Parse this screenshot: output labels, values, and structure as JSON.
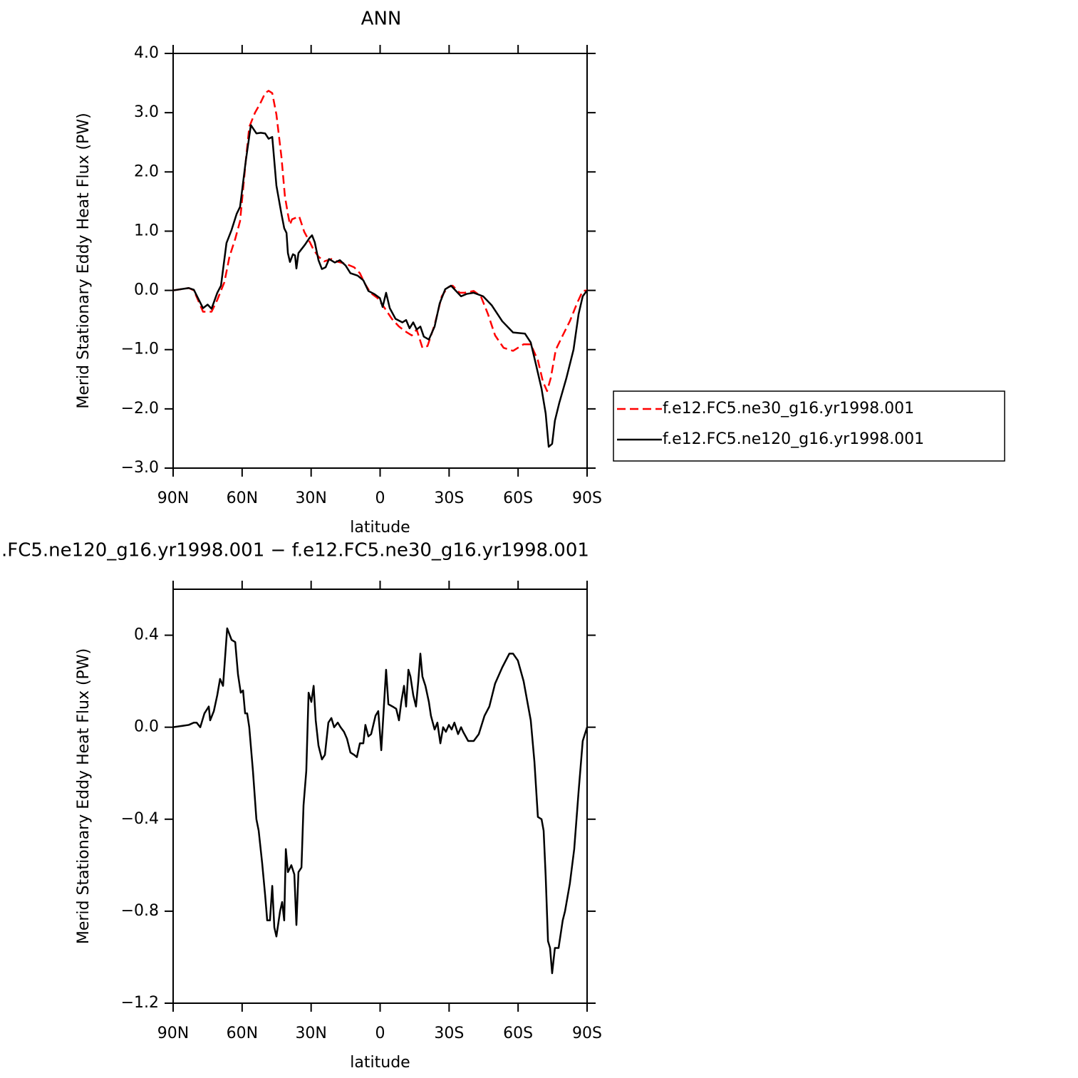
{
  "chart_data": [
    {
      "type": "line",
      "title": "ANN",
      "xlabel": "latitude",
      "ylabel": "Merid Stationary Eddy Heat Flux (PW)",
      "xlim": [
        90,
        -90
      ],
      "xticks": [
        {
          "value": 90,
          "label": "90N"
        },
        {
          "value": 60,
          "label": "60N"
        },
        {
          "value": 30,
          "label": "30N"
        },
        0,
        {
          "value": -30,
          "label": "30S"
        },
        {
          "value": -60,
          "label": "60S"
        },
        {
          "value": -90,
          "label": "90S"
        }
      ],
      "ylim": [
        -3,
        4
      ],
      "yticks": [
        {
          "value": 4,
          "label": "4.0"
        },
        {
          "value": 3,
          "label": "3.0"
        },
        {
          "value": 2,
          "label": "2.0"
        },
        {
          "value": 1,
          "label": "1.0"
        },
        {
          "value": 0,
          "label": "0.0"
        },
        {
          "value": -1,
          "label": "−1.0"
        },
        {
          "value": -2,
          "label": "−2.0"
        },
        {
          "value": -3,
          "label": "−3.0"
        }
      ],
      "legend": "right",
      "series": [
        {
          "name": "f.e12.FC5.ne30_g16.yr1998.001",
          "color": "#ff0000",
          "linestyle": "dashed",
          "x": [
            90,
            83.2,
            81,
            77,
            73.3,
            70.8,
            67.7,
            65.5,
            63,
            60.9,
            58.4,
            56.9,
            54.4,
            52.2,
            50,
            48.5,
            46.9,
            45.1,
            42.9,
            41.4,
            40.1,
            39.2,
            38.3,
            35.2,
            33,
            30.5,
            29,
            26.8,
            24.3,
            21.2,
            18.1,
            15,
            11.3,
            8.8,
            6.7,
            4.2,
            1.1,
            -2,
            -5.1,
            -8.2,
            -11.3,
            -13.8,
            -15.9,
            -18.4,
            -20.6,
            -23.7,
            -26.8,
            -29.3,
            -31.5,
            -34.6,
            -36.7,
            -40.7,
            -43.8,
            -46.9,
            -50,
            -53.7,
            -57.8,
            -62.4,
            -65.5,
            -68.6,
            -70.8,
            -72.6,
            -74.2,
            -76.4,
            -79.4,
            -82.5,
            -85.6,
            -88.1,
            -90
          ],
          "values": [
            0,
            0.04,
            0,
            -0.36,
            -0.36,
            -0.16,
            0.14,
            0.57,
            0.87,
            1.17,
            2.19,
            2.76,
            3.0,
            3.15,
            3.33,
            3.37,
            3.33,
            2.97,
            2.25,
            1.59,
            1.29,
            1.11,
            1.2,
            1.25,
            0.99,
            0.81,
            0.69,
            0.57,
            0.49,
            0.53,
            0.48,
            0.45,
            0.39,
            0.29,
            0.12,
            -0.04,
            -0.13,
            -0.3,
            -0.48,
            -0.61,
            -0.7,
            -0.76,
            -0.66,
            -0.97,
            -0.94,
            -0.58,
            -0.1,
            0.05,
            0.08,
            -0.04,
            -0.04,
            -0.01,
            -0.1,
            -0.4,
            -0.76,
            -0.97,
            -1.02,
            -0.91,
            -0.91,
            -1.18,
            -1.54,
            -1.7,
            -1.48,
            -1.0,
            -0.76,
            -0.52,
            -0.22,
            -0.01,
            0
          ]
        },
        {
          "name": "f.e12.FC5.ne120_g16.yr1998.001",
          "color": "#000000",
          "linestyle": "solid",
          "x": [
            90,
            83.2,
            81,
            77,
            75,
            73.3,
            70.8,
            69.2,
            66.8,
            64.6,
            62.4,
            60.9,
            58.4,
            56.2,
            53.8,
            51.9,
            50,
            48.5,
            46.9,
            45.1,
            42.9,
            41.7,
            40.7,
            40.1,
            39.2,
            37.9,
            37,
            36.4,
            35.5,
            32.7,
            30.8,
            29.6,
            28.4,
            26.8,
            25.3,
            23.7,
            22.2,
            19.7,
            17.5,
            15,
            12.9,
            9.8,
            7.3,
            5.1,
            2.6,
            0.1,
            -1.1,
            -2.6,
            -4.2,
            -6.7,
            -9.7,
            -11.3,
            -12.8,
            -14.4,
            -15.9,
            -17.5,
            -19,
            -21.2,
            -23.7,
            -25.9,
            -28.3,
            -30.8,
            -33,
            -35.2,
            -37.6,
            -40.7,
            -44.8,
            -48.5,
            -53.1,
            -57.8,
            -63,
            -65.5,
            -67.7,
            -70.2,
            -72,
            -73.3,
            -74.8,
            -76,
            -77.9,
            -81,
            -84.1,
            -86.3,
            -88.1,
            -90
          ],
          "values": [
            0,
            0.04,
            0.01,
            -0.3,
            -0.24,
            -0.31,
            -0.04,
            0.08,
            0.8,
            1.02,
            1.29,
            1.41,
            2.19,
            2.79,
            2.65,
            2.66,
            2.65,
            2.56,
            2.59,
            1.77,
            1.29,
            1.05,
            0.97,
            0.63,
            0.48,
            0.61,
            0.59,
            0.37,
            0.63,
            0.77,
            0.88,
            0.93,
            0.81,
            0.51,
            0.36,
            0.39,
            0.53,
            0.47,
            0.51,
            0.42,
            0.29,
            0.25,
            0.17,
            -0.01,
            -0.06,
            -0.13,
            -0.28,
            -0.04,
            -0.3,
            -0.48,
            -0.54,
            -0.5,
            -0.64,
            -0.54,
            -0.66,
            -0.61,
            -0.78,
            -0.83,
            -0.61,
            -0.22,
            0.02,
            0.08,
            -0.01,
            -0.1,
            -0.06,
            -0.04,
            -0.1,
            -0.25,
            -0.52,
            -0.71,
            -0.73,
            -0.88,
            -1.24,
            -1.66,
            -2.08,
            -2.64,
            -2.59,
            -2.2,
            -1.9,
            -1.48,
            -1.0,
            -0.4,
            -0.1,
            0
          ]
        }
      ]
    },
    {
      "type": "line",
      "title": ".FC5.ne120_g16.yr1998.001 − f.e12.FC5.ne30_g16.yr1998.001",
      "xlabel": "latitude",
      "ylabel": "Merid Stationary Eddy Heat Flux (PW)",
      "xlim": [
        90,
        -90
      ],
      "xticks": [
        {
          "value": 90,
          "label": "90N"
        },
        {
          "value": 60,
          "label": "60N"
        },
        {
          "value": 30,
          "label": "30N"
        },
        0,
        {
          "value": -30,
          "label": "30S"
        },
        {
          "value": -60,
          "label": "60S"
        },
        {
          "value": -90,
          "label": "90S"
        }
      ],
      "ylim": [
        -1.2,
        0.6
      ],
      "yticks": [
        {
          "value": 0.4,
          "label": "0.4"
        },
        {
          "value": 0,
          "label": "0.0"
        },
        {
          "value": -0.4,
          "label": "−0.4"
        },
        {
          "value": -0.8,
          "label": "−0.8"
        },
        {
          "value": -1.2,
          "label": "−1.2"
        }
      ],
      "series": [
        {
          "color": "#000000",
          "linestyle": "solid",
          "x": [
            90,
            83.2,
            81,
            79.8,
            78.2,
            76.4,
            74.5,
            73.9,
            72.3,
            70.8,
            69.6,
            68.3,
            66.5,
            64.6,
            63,
            61.8,
            60.6,
            59.6,
            58.7,
            57.8,
            56.9,
            55.3,
            53.8,
            52.8,
            51.3,
            50,
            49.1,
            47.9,
            46.9,
            46,
            45.1,
            43.5,
            42.6,
            41.7,
            41,
            40.1,
            38.6,
            37.3,
            36.4,
            35.5,
            34.2,
            33.3,
            32.1,
            31.1,
            29.9,
            28.9,
            28,
            26.8,
            25.3,
            24,
            22.5,
            21.2,
            20,
            18.4,
            17.2,
            15.7,
            14.4,
            12.9,
            11.3,
            10.1,
            8.8,
            7.3,
            6.4,
            5.1,
            3.9,
            2,
            0.8,
            -0.5,
            -1.4,
            -2.6,
            -3.6,
            -5.4,
            -7,
            -8.2,
            -9.2,
            -10.4,
            -11.3,
            -12.3,
            -13.2,
            -14.4,
            -15.6,
            -16.6,
            -17.5,
            -18.4,
            -19.7,
            -21.2,
            -22.1,
            -23.7,
            -24.9,
            -26.2,
            -27.4,
            -28.6,
            -29.9,
            -31.1,
            -32.3,
            -33.9,
            -35.2,
            -36.1,
            -38.3,
            -40.7,
            -42.9,
            -45.4,
            -47.5,
            -50,
            -53.1,
            -56.2,
            -57.8,
            -59.9,
            -62.4,
            -65.5,
            -67.1,
            -68.6,
            -70.2,
            -71.1,
            -72,
            -73,
            -73.9,
            -74.8,
            -76,
            -77.6,
            -79.4,
            -80.4,
            -82.5,
            -84.4,
            -86.3,
            -88.1,
            -90
          ],
          "values": [
            0,
            0.01,
            0.02,
            0.02,
            0,
            0.06,
            0.09,
            0.03,
            0.07,
            0.14,
            0.21,
            0.18,
            0.43,
            0.38,
            0.37,
            0.23,
            0.15,
            0.16,
            0.06,
            0.06,
            0,
            -0.19,
            -0.4,
            -0.45,
            -0.59,
            -0.73,
            -0.84,
            -0.84,
            -0.69,
            -0.87,
            -0.91,
            -0.8,
            -0.76,
            -0.84,
            -0.53,
            -0.63,
            -0.6,
            -0.64,
            -0.86,
            -0.63,
            -0.61,
            -0.34,
            -0.19,
            0.15,
            0.11,
            0.18,
            0.03,
            -0.08,
            -0.14,
            -0.12,
            0.02,
            0.04,
            0,
            0.02,
            0,
            -0.02,
            -0.05,
            -0.11,
            -0.12,
            -0.13,
            -0.07,
            -0.07,
            0.01,
            -0.04,
            -0.03,
            0.05,
            0.07,
            -0.1,
            0.05,
            0.25,
            0.1,
            0.09,
            0.08,
            0.03,
            0.11,
            0.18,
            0.09,
            0.25,
            0.22,
            0.14,
            0.09,
            0.2,
            0.32,
            0.22,
            0.18,
            0.11,
            0.05,
            -0.01,
            0.02,
            -0.07,
            0,
            -0.02,
            0.01,
            -0.01,
            0.02,
            -0.03,
            0,
            -0.02,
            -0.06,
            -0.06,
            -0.03,
            0.05,
            0.09,
            0.19,
            0.26,
            0.32,
            0.32,
            0.29,
            0.2,
            0.03,
            -0.15,
            -0.39,
            -0.4,
            -0.45,
            -0.65,
            -0.93,
            -0.96,
            -1.07,
            -0.96,
            -0.96,
            -0.84,
            -0.8,
            -0.68,
            -0.53,
            -0.28,
            -0.06,
            0
          ]
        }
      ]
    }
  ]
}
